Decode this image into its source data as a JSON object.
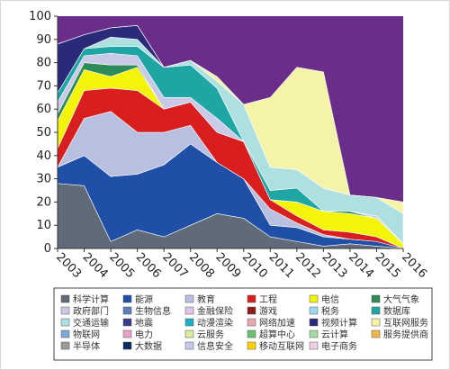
{
  "chart_data": {
    "type": "area",
    "stacked": true,
    "percent": true,
    "x": [
      "2003",
      "2004",
      "2005",
      "2006",
      "2007",
      "2008",
      "2009",
      "2010",
      "2011",
      "2012",
      "2013",
      "2014",
      "2015",
      "2016"
    ],
    "ylim": [
      0,
      100
    ],
    "yticks": [
      0,
      10,
      20,
      30,
      40,
      50,
      60,
      70,
      80,
      90,
      100
    ],
    "legend_position": "bottom",
    "series": [
      {
        "name": "科学计算",
        "color": "#5f6b78",
        "values": [
          28,
          27,
          3,
          8,
          5,
          10,
          15,
          13,
          5,
          3,
          1,
          2,
          1,
          0
        ]
      },
      {
        "name": "能源",
        "color": "#1f4fa6",
        "values": [
          7,
          13,
          28,
          24,
          31,
          35,
          22,
          17,
          5,
          6,
          4,
          2,
          2,
          0
        ]
      },
      {
        "name": "教育",
        "color": "#b9bfe0",
        "values": [
          0,
          16,
          28,
          18,
          14,
          8,
          0,
          0,
          7,
          2,
          1,
          0,
          0,
          0
        ]
      },
      {
        "name": "工程",
        "color": "#d81e1e",
        "values": [
          8,
          12,
          10,
          18,
          10,
          10,
          13,
          16,
          4,
          3,
          2,
          3,
          2,
          0
        ]
      },
      {
        "name": "电信",
        "color": "#f4f30a",
        "values": [
          12,
          9,
          5,
          10,
          0,
          0,
          0,
          0,
          0,
          6,
          8,
          8,
          8,
          2
        ]
      },
      {
        "name": "大气气象",
        "color": "#2e8b57",
        "values": [
          3,
          3,
          5,
          1,
          0,
          0,
          0,
          0,
          0,
          0,
          0,
          1,
          0,
          0
        ]
      },
      {
        "name": "政府部门",
        "color": "#c9c9e8",
        "values": [
          5,
          3,
          5,
          4,
          5,
          2,
          6,
          0,
          0,
          0,
          0,
          0,
          1,
          0
        ]
      },
      {
        "name": "生物信息",
        "color": "#5e7cc0",
        "values": [
          0,
          0,
          0,
          0,
          0,
          0,
          0,
          0,
          0,
          0,
          0,
          0,
          0,
          0
        ]
      },
      {
        "name": "金融保险",
        "color": "#e0c5e8",
        "values": [
          0,
          0,
          0,
          0,
          0,
          0,
          0,
          0,
          0,
          0,
          0,
          0,
          0,
          0
        ]
      },
      {
        "name": "游戏",
        "color": "#8c1c1c",
        "values": [
          0,
          0,
          0,
          0,
          0,
          0,
          0,
          0,
          0,
          0,
          0,
          0,
          0,
          0
        ]
      },
      {
        "name": "税务",
        "color": "#9fd6f0",
        "values": [
          0,
          0,
          0,
          0,
          0,
          0,
          0,
          0,
          0,
          0,
          0,
          0,
          0,
          0
        ]
      },
      {
        "name": "数据库",
        "color": "#20a5a5",
        "values": [
          4,
          3,
          3,
          4,
          13,
          14,
          13,
          0,
          4,
          6,
          0,
          0,
          0,
          0
        ]
      },
      {
        "name": "交通运输",
        "color": "#aee0e0",
        "values": [
          0,
          0,
          4,
          3,
          0,
          2,
          3,
          16,
          10,
          8,
          10,
          7,
          8,
          13
        ]
      },
      {
        "name": "地震",
        "color": "#3a3a8c",
        "values": [
          0,
          0,
          0,
          0,
          0,
          0,
          0,
          0,
          0,
          0,
          0,
          0,
          0,
          0
        ]
      },
      {
        "name": "动漫渲染",
        "color": "#1fb0c8",
        "values": [
          0,
          0,
          0,
          0,
          0,
          0,
          0,
          0,
          0,
          0,
          0,
          0,
          0,
          0
        ]
      },
      {
        "name": "网络加速",
        "color": "#e8a8b0",
        "values": [
          0,
          0,
          0,
          0,
          0,
          0,
          0,
          0,
          0,
          0,
          0,
          0,
          0,
          0
        ]
      },
      {
        "name": "视频计算",
        "color": "#2a2a7a",
        "values": [
          21,
          6,
          4,
          6,
          0,
          0,
          0,
          0,
          0,
          0,
          0,
          0,
          0,
          0
        ]
      },
      {
        "name": "互联网服务",
        "color": "#f4f3a8",
        "values": [
          0,
          0,
          0,
          0,
          0,
          0,
          2,
          0,
          30,
          44,
          50,
          0,
          0,
          5
        ]
      },
      {
        "name": "物联网",
        "color": "#7fa8d8",
        "values": [
          0,
          0,
          0,
          0,
          0,
          0,
          0,
          0,
          0,
          0,
          0,
          0,
          0,
          0
        ]
      },
      {
        "name": "电力",
        "color": "#e9a0c8",
        "values": [
          0,
          0,
          0,
          0,
          0,
          0,
          0,
          0,
          0,
          0,
          0,
          0,
          0,
          0
        ]
      },
      {
        "name": "云服务",
        "color": "#d6ec9c",
        "values": [
          0,
          0,
          0,
          0,
          0,
          0,
          0,
          0,
          0,
          0,
          0,
          0,
          0,
          0
        ]
      },
      {
        "name": "超算中心",
        "color": "#6dbf6d",
        "values": [
          0,
          0,
          0,
          0,
          0,
          0,
          0,
          0,
          0,
          0,
          0,
          0,
          0,
          0
        ]
      },
      {
        "name": "云计算",
        "color": "#a8d8a8",
        "values": [
          0,
          0,
          0,
          0,
          0,
          0,
          0,
          0,
          0,
          0,
          0,
          0,
          0,
          0
        ]
      },
      {
        "name": "服务提供商",
        "color": "#f0b74b",
        "values": [
          0,
          0,
          0,
          0,
          0,
          0,
          0,
          0,
          0,
          0,
          0,
          0,
          0,
          0
        ]
      },
      {
        "name": "半导体",
        "color": "#9a9a9a",
        "values": [
          0,
          0,
          0,
          0,
          0,
          0,
          0,
          0,
          0,
          0,
          0,
          0,
          0,
          0
        ]
      },
      {
        "name": "大数据",
        "color": "#0b2a5c",
        "values": [
          0,
          0,
          0,
          0,
          0,
          0,
          0,
          0,
          0,
          0,
          0,
          0,
          0,
          0
        ]
      },
      {
        "name": "信息安全",
        "color": "#c8c8e8",
        "values": [
          0,
          0,
          0,
          0,
          0,
          0,
          0,
          0,
          0,
          0,
          0,
          0,
          0,
          0
        ]
      },
      {
        "name": "移动互联网",
        "color": "#ffd000",
        "values": [
          0,
          0,
          0,
          0,
          0,
          0,
          0,
          0,
          0,
          0,
          0,
          0,
          0,
          0
        ]
      },
      {
        "name": "电子商务",
        "color": "#f0d0e0",
        "values": [
          0,
          0,
          0,
          0,
          0,
          0,
          0,
          0,
          0,
          0,
          0,
          0,
          0,
          0
        ]
      }
    ],
    "top_filler": {
      "color": "#6a2d8a",
      "note_visible": false
    }
  }
}
